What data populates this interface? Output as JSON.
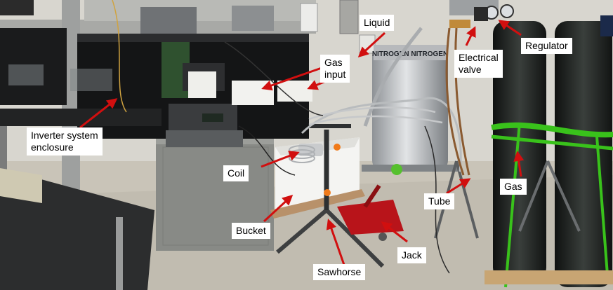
{
  "labels": {
    "liquid": "Liquid",
    "regulator": "Regulator",
    "gas_input_line1": "Gas",
    "gas_input_line2": "input",
    "electrical_valve_line1": "Electrical",
    "electrical_valve_line2": "valve",
    "inverter_line1": "Inverter  system",
    "inverter_line2": "enclosure",
    "coil": "Coil",
    "gas": "Gas",
    "tube": "Tube",
    "bucket": "Bucket",
    "jack": "Jack",
    "sawhorse": "Sawhorse"
  },
  "dewar_text": "NITROGEN NITROGEN",
  "colors": {
    "arrow": "#d10f0f",
    "label_bg": "#ffffff",
    "strap": "#39c21b",
    "cylinder": "#1f2321",
    "jack": "#b8141a"
  }
}
